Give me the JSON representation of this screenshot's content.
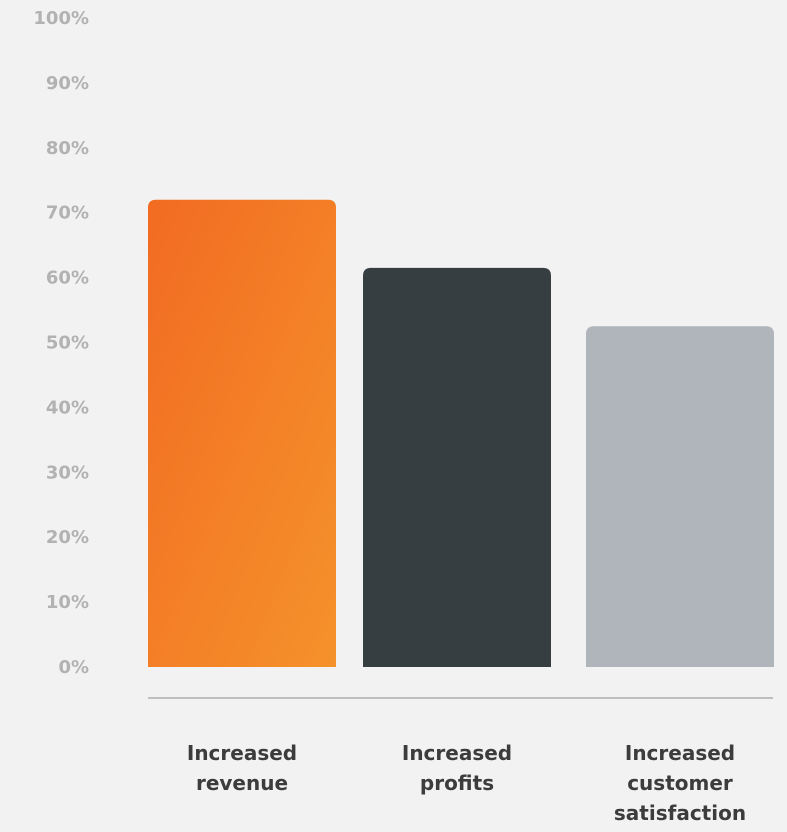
{
  "chart_data": {
    "type": "bar",
    "categories": [
      [
        "Increased",
        "revenue"
      ],
      [
        "Increased",
        "profits"
      ],
      [
        "Increased",
        "customer",
        "satisfaction"
      ]
    ],
    "values": [
      72,
      61.5,
      52.5
    ],
    "ylim": [
      0,
      100
    ],
    "yticks": [
      0,
      10,
      20,
      30,
      40,
      50,
      60,
      70,
      80,
      90,
      100
    ],
    "ytick_labels": [
      "0%",
      "10%",
      "20%",
      "30%",
      "40%",
      "50%",
      "60%",
      "70%",
      "80%",
      "90%",
      "100%"
    ],
    "grid": false,
    "legend": "none",
    "colors": {
      "background": "#f2f2f2",
      "bars": [
        {
          "from": "#f26b22",
          "to": "#f5922b"
        },
        {
          "from": "#363e41",
          "to": "#363e41"
        },
        {
          "from": "#afb5bb",
          "to": "#afb5bb"
        }
      ],
      "tick_label": "#b2b2b2",
      "category_label": "#3c3c3c",
      "axis_line": "#bfbfbf"
    }
  }
}
